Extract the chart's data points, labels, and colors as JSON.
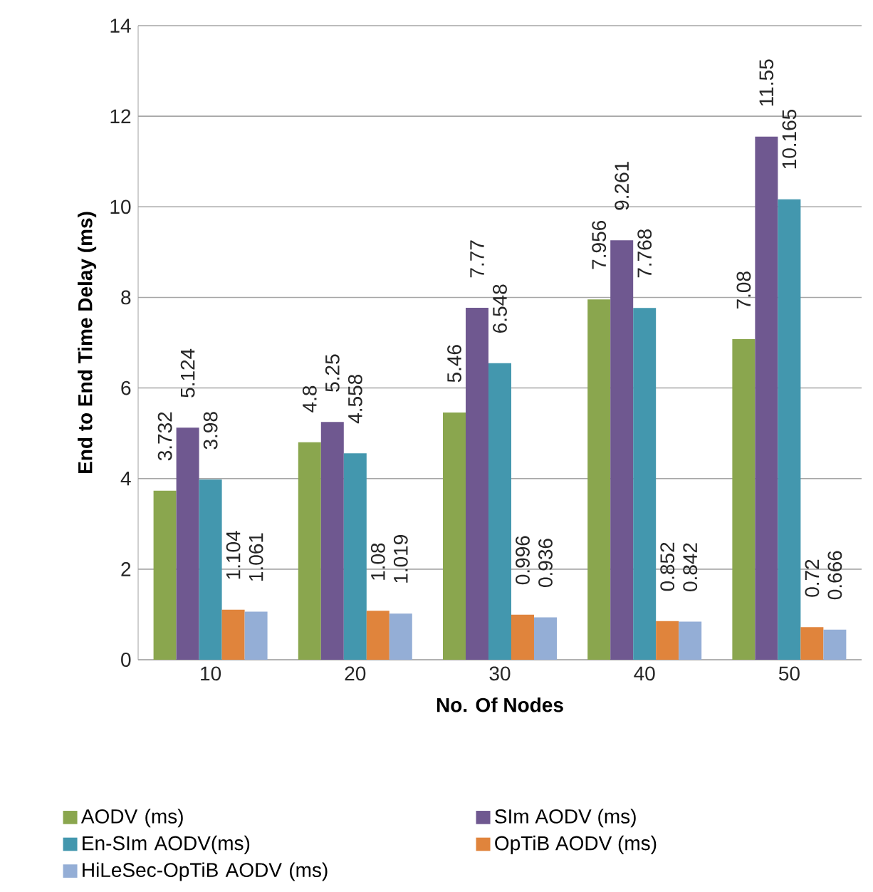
{
  "chart_data": {
    "type": "bar",
    "xlabel": "No. Of Nodes",
    "ylabel": "End to End Time Delay (ms)",
    "categories": [
      "10",
      "20",
      "30",
      "40",
      "50"
    ],
    "series": [
      {
        "name": "AODV  (ms)",
        "color": "#8aa64e",
        "values": [
          3.732,
          4.8,
          5.46,
          7.956,
          7.08
        ],
        "value_labels": [
          "3.732",
          "4.8",
          "5.46",
          "7.956",
          "7.08"
        ]
      },
      {
        "name": "SIm AODV  (ms)",
        "color": "#6f5890",
        "values": [
          5.124,
          5.25,
          7.77,
          9.261,
          11.55
        ],
        "value_labels": [
          "5.124",
          "5.25",
          "7.77",
          "9.261",
          "11.55"
        ]
      },
      {
        "name": "En-SIm AODV(ms)",
        "color": "#4397ae",
        "values": [
          3.98,
          4.558,
          6.548,
          7.768,
          10.165
        ],
        "value_labels": [
          "3.98",
          "4.558",
          "6.548",
          "7.768",
          "10.165"
        ]
      },
      {
        "name": "OpTiB AODV (ms)",
        "color": "#e0843c",
        "values": [
          1.104,
          1.08,
          0.996,
          0.852,
          0.72
        ],
        "value_labels": [
          "1.104",
          "1.08",
          "0.996",
          "0.852",
          "0.72"
        ]
      },
      {
        "name": "HiLeSec-OpTiB AODV (ms)",
        "color": "#94aed6",
        "values": [
          1.061,
          1.019,
          0.936,
          0.842,
          0.666
        ],
        "value_labels": [
          "1.061",
          "1.019",
          "0.936",
          "0.842",
          "0.666"
        ]
      }
    ],
    "ylim": [
      0,
      14
    ],
    "yticks": [
      0,
      2,
      4,
      6,
      8,
      10,
      12,
      14
    ],
    "grid": "y",
    "legend": "bottom"
  }
}
